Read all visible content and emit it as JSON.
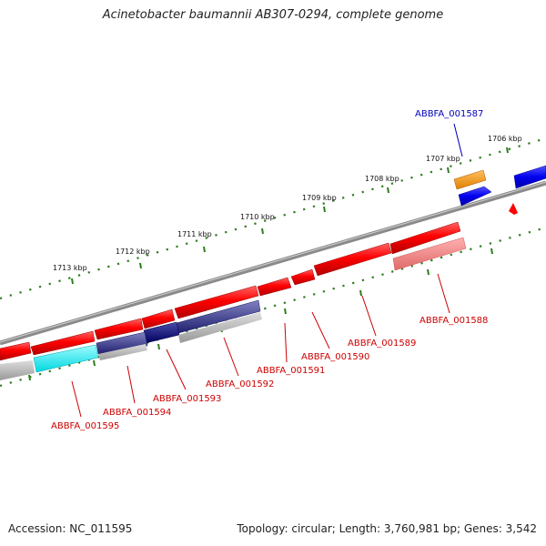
{
  "title": "Acinetobacter baumannii AB307-0294, complete genome",
  "footer": {
    "accession": "Accession: NC_011595",
    "summary": "Topology: circular; Length: 3,760,981 bp; Genes: 3,542"
  },
  "ticks": [
    "1706 kbp",
    "1707 kbp",
    "1708 kbp",
    "1709 kbp",
    "1710 kbp",
    "1711 kbp",
    "1712 kbp",
    "1713 kbp"
  ],
  "genes": [
    {
      "id": "ABBFA_001587",
      "color": "#0000bb"
    },
    {
      "id": "ABBFA_001588",
      "color": "#cc0000"
    },
    {
      "id": "ABBFA_001589",
      "color": "#cc0000"
    },
    {
      "id": "ABBFA_001590",
      "color": "#cc0000"
    },
    {
      "id": "ABBFA_001591",
      "color": "#cc0000"
    },
    {
      "id": "ABBFA_001592",
      "color": "#cc0000"
    },
    {
      "id": "ABBFA_001593",
      "color": "#cc0000"
    },
    {
      "id": "ABBFA_001594",
      "color": "#cc0000"
    },
    {
      "id": "ABBFA_001595",
      "color": "#cc0000"
    }
  ]
}
